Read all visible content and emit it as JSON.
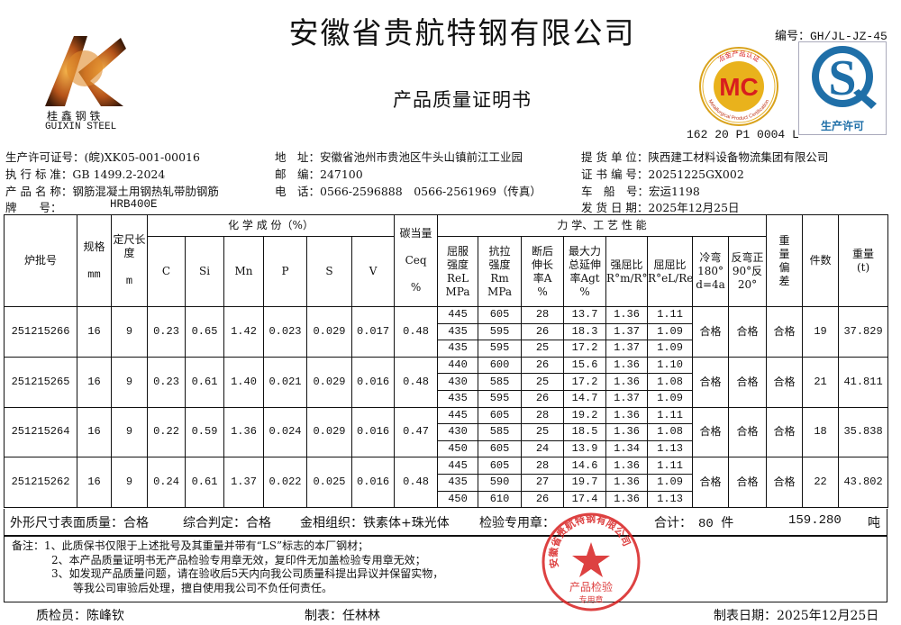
{
  "header": {
    "company": "安徽省贵航特钢有限公司",
    "doc_title": "产品质量证明书",
    "doc_number": "编号：GH/JL-JZ-45",
    "logo_cn": "桂 鑫 钢 铁",
    "logo_en": "GUIXIN STEEL",
    "mc_badge": "MC",
    "mc_ring_cn": "冶金产品认证",
    "mc_ring_en": "Metallurgical Product Certification",
    "mc_cert_no": "162 20 P1 0004 L",
    "qs_label": "生产许可",
    "accent_red": "#d81e1e",
    "qs_blue": "#1f6fa8"
  },
  "info": {
    "license": "生产许可证号：(皖)XK05-001-00016",
    "standard": "执 行 标 准：GB 1499.2-2024",
    "product": "产 品 名 称：钢筋混凝土用钢热轧带肋钢筋",
    "grade_label": "牌　　号：",
    "grade": "HRB400E",
    "address": "地　址：安徽省池州市贵池区牛头山镇前江工业园",
    "postcode": "邮　编：247100",
    "phone": "电　话：0566-2596888　0566-2561969（传真）",
    "consignee": "提 货 单 位：陕西建工材料设备物流集团有限公司",
    "cert_no": "证 书 编 号：20251225GX002",
    "vehicle": "车　船　号：宏运1198",
    "ship_date": "发 货 日 期：2025年12月25日"
  },
  "table": {
    "headers": {
      "batch": "炉批号",
      "spec": "规格",
      "spec_unit": "mm",
      "length": "定尺长度",
      "length_unit": "m",
      "chem": "化 学 成 份（%）",
      "C": "C",
      "Si": "Si",
      "Mn": "Mn",
      "P": "P",
      "S": "S",
      "V": "V",
      "ceq": "碳当量",
      "ceq_sym": "Ceq",
      "ceq_unit": "%",
      "mech": "力 学、工 艺 性 能",
      "rel": "屈服强度ReL MPa",
      "rm": "抗拉强度Rm MPa",
      "a": "断后伸长率A %",
      "agt": "最大力总延伸率Agt %",
      "ratio1": "强屈比R°m/R°eL",
      "ratio2": "屈屈比R°eL/ReL",
      "bend": "冷弯180° d=4a",
      "rebend": "反弯正90°反20°",
      "dev": "重量偏差",
      "count": "件数",
      "weight": "重量(t)"
    },
    "rows": [
      {
        "batch": "251215266",
        "spec": "16",
        "length": "9",
        "C": "0.23",
        "Si": "0.65",
        "Mn": "1.42",
        "P": "0.023",
        "S": "0.029",
        "V": "0.017",
        "ceq": "0.48",
        "mech": [
          [
            "445",
            "605",
            "28",
            "13.7",
            "1.36",
            "1.11"
          ],
          [
            "435",
            "595",
            "26",
            "18.3",
            "1.37",
            "1.09"
          ],
          [
            "435",
            "595",
            "25",
            "17.2",
            "1.37",
            "1.09"
          ]
        ],
        "bend": "合格",
        "rebend": "合格",
        "dev": "合格",
        "count": "19",
        "weight": "37.829"
      },
      {
        "batch": "251215265",
        "spec": "16",
        "length": "9",
        "C": "0.23",
        "Si": "0.61",
        "Mn": "1.40",
        "P": "0.021",
        "S": "0.029",
        "V": "0.016",
        "ceq": "0.48",
        "mech": [
          [
            "440",
            "600",
            "26",
            "15.6",
            "1.36",
            "1.10"
          ],
          [
            "430",
            "585",
            "25",
            "17.2",
            "1.36",
            "1.08"
          ],
          [
            "435",
            "595",
            "26",
            "14.7",
            "1.37",
            "1.09"
          ]
        ],
        "bend": "合格",
        "rebend": "合格",
        "dev": "合格",
        "count": "21",
        "weight": "41.811"
      },
      {
        "batch": "251215264",
        "spec": "16",
        "length": "9",
        "C": "0.22",
        "Si": "0.59",
        "Mn": "1.36",
        "P": "0.024",
        "S": "0.029",
        "V": "0.016",
        "ceq": "0.47",
        "mech": [
          [
            "445",
            "605",
            "28",
            "19.2",
            "1.36",
            "1.11"
          ],
          [
            "430",
            "585",
            "25",
            "18.5",
            "1.36",
            "1.08"
          ],
          [
            "450",
            "605",
            "24",
            "13.9",
            "1.34",
            "1.13"
          ]
        ],
        "bend": "合格",
        "rebend": "合格",
        "dev": "合格",
        "count": "18",
        "weight": "35.838"
      },
      {
        "batch": "251215262",
        "spec": "16",
        "length": "9",
        "C": "0.24",
        "Si": "0.61",
        "Mn": "1.37",
        "P": "0.022",
        "S": "0.025",
        "V": "0.016",
        "ceq": "0.48",
        "mech": [
          [
            "445",
            "605",
            "28",
            "14.6",
            "1.36",
            "1.11"
          ],
          [
            "435",
            "590",
            "27",
            "19.7",
            "1.36",
            "1.09"
          ],
          [
            "450",
            "610",
            "26",
            "17.4",
            "1.36",
            "1.13"
          ]
        ],
        "bend": "合格",
        "rebend": "合格",
        "dev": "合格",
        "count": "22",
        "weight": "43.802"
      }
    ]
  },
  "summary": {
    "appearance": "外形尺寸表面质量：合格",
    "judgement": "综合判定：合格",
    "metallography": "金相组织：铁素体+珠光体",
    "seal_label": "检验专用章：",
    "total_label": "合计：",
    "total_count": "80 件",
    "total_weight": "159.280",
    "weight_unit": "吨"
  },
  "notes": {
    "label": "备注：",
    "n1": "1、此质保书仅限于上述批号及其重量并带有“LS”标志的本厂钢材；",
    "n2": "2、本产品质量证明书无产品检验专用章无效，复印件无加盖检验专用章无效；",
    "n3": "3、如发现产品质量问题，请在验收后5天内向我公司质量科提出异议并保留实物，",
    "n4": "等我公司审验后处理，擅自使用我公司不负任何责任。"
  },
  "seal": {
    "ring": "安徽省贵航特钢有限公司",
    "center": "产品检验",
    "bottom": "专用章"
  },
  "footer": {
    "inspector": "质检员：陈峰钦",
    "preparer": "制表：任林林",
    "date": "制表日期：2025年12月25日"
  }
}
